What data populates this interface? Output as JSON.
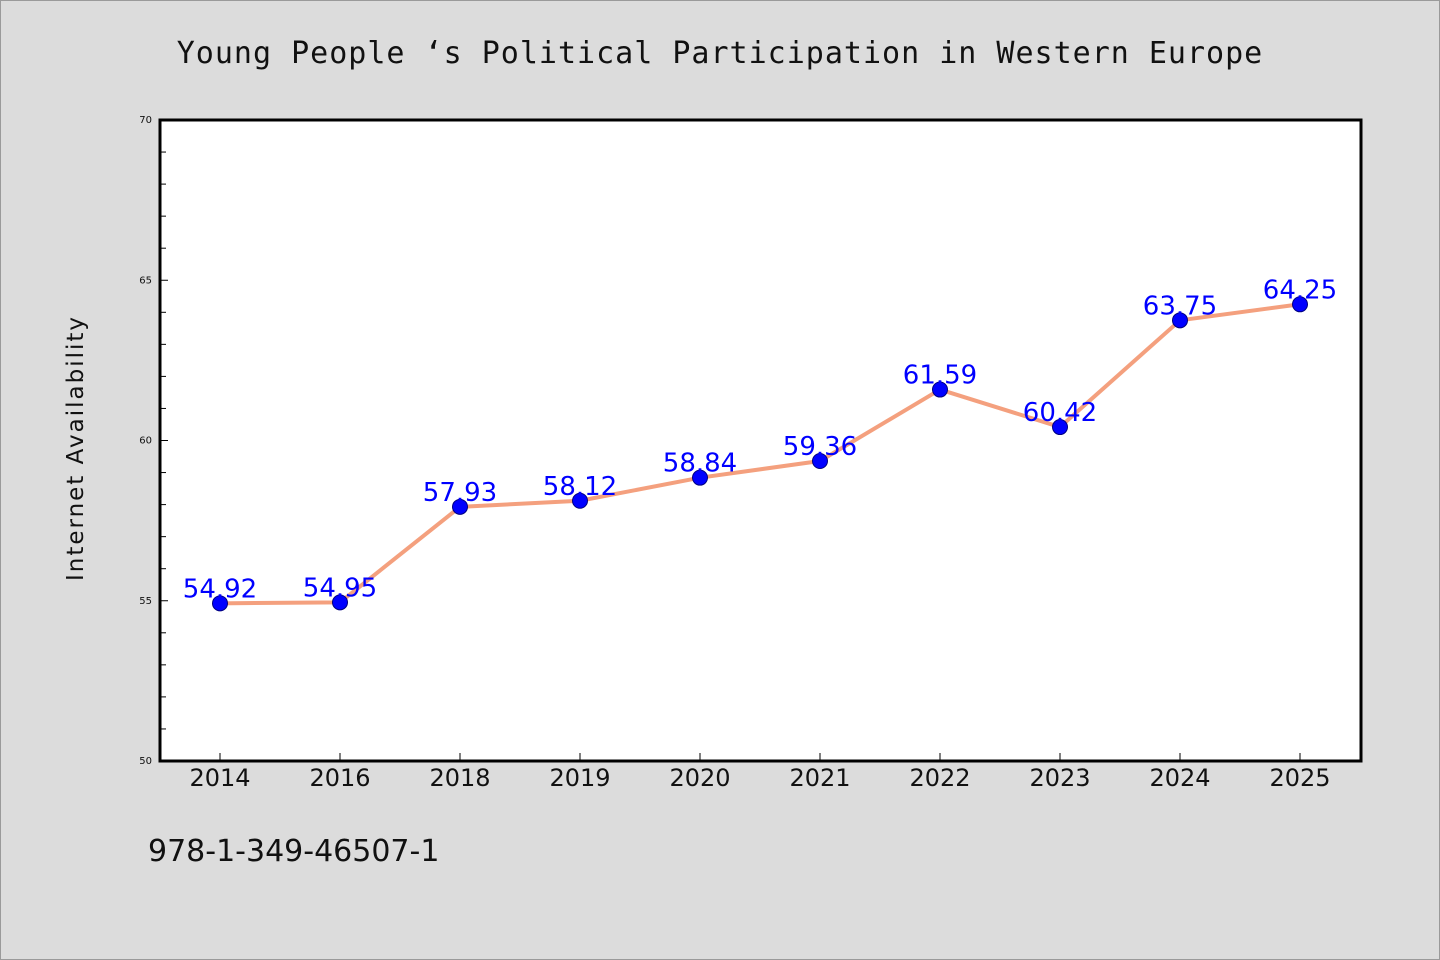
{
  "chart_data": {
    "type": "line",
    "title": "Young People ‘s Political Participation in Western Europe",
    "xlabel": "",
    "ylabel": "Internet Availability",
    "categories": [
      "2014",
      "2016",
      "2018",
      "2019",
      "2020",
      "2021",
      "2022",
      "2023",
      "2024",
      "2025"
    ],
    "series": [
      {
        "values": [
          54.92,
          54.95,
          57.93,
          58.12,
          58.84,
          59.36,
          61.59,
          60.42,
          63.75,
          64.25
        ],
        "data_labels": [
          "54.92",
          "54.95",
          "57.93",
          "58.12",
          "58.84",
          "59.36",
          "61.59",
          "60.42",
          "63.75",
          "64.25"
        ],
        "line_color": "#f4a07e",
        "marker_color": "#0000ff"
      }
    ],
    "ylim": [
      50,
      70
    ],
    "yticks": [
      "50",
      "55",
      "60",
      "65",
      "70"
    ],
    "grid": false,
    "legend": "none"
  },
  "footnote": "978-1-349-46507-1",
  "colors": {
    "background": "#dcdcdc",
    "plot_background": "#ffffff",
    "line": "#f4a07e",
    "marker": "#0000ff",
    "data_label": "#0000ff"
  }
}
